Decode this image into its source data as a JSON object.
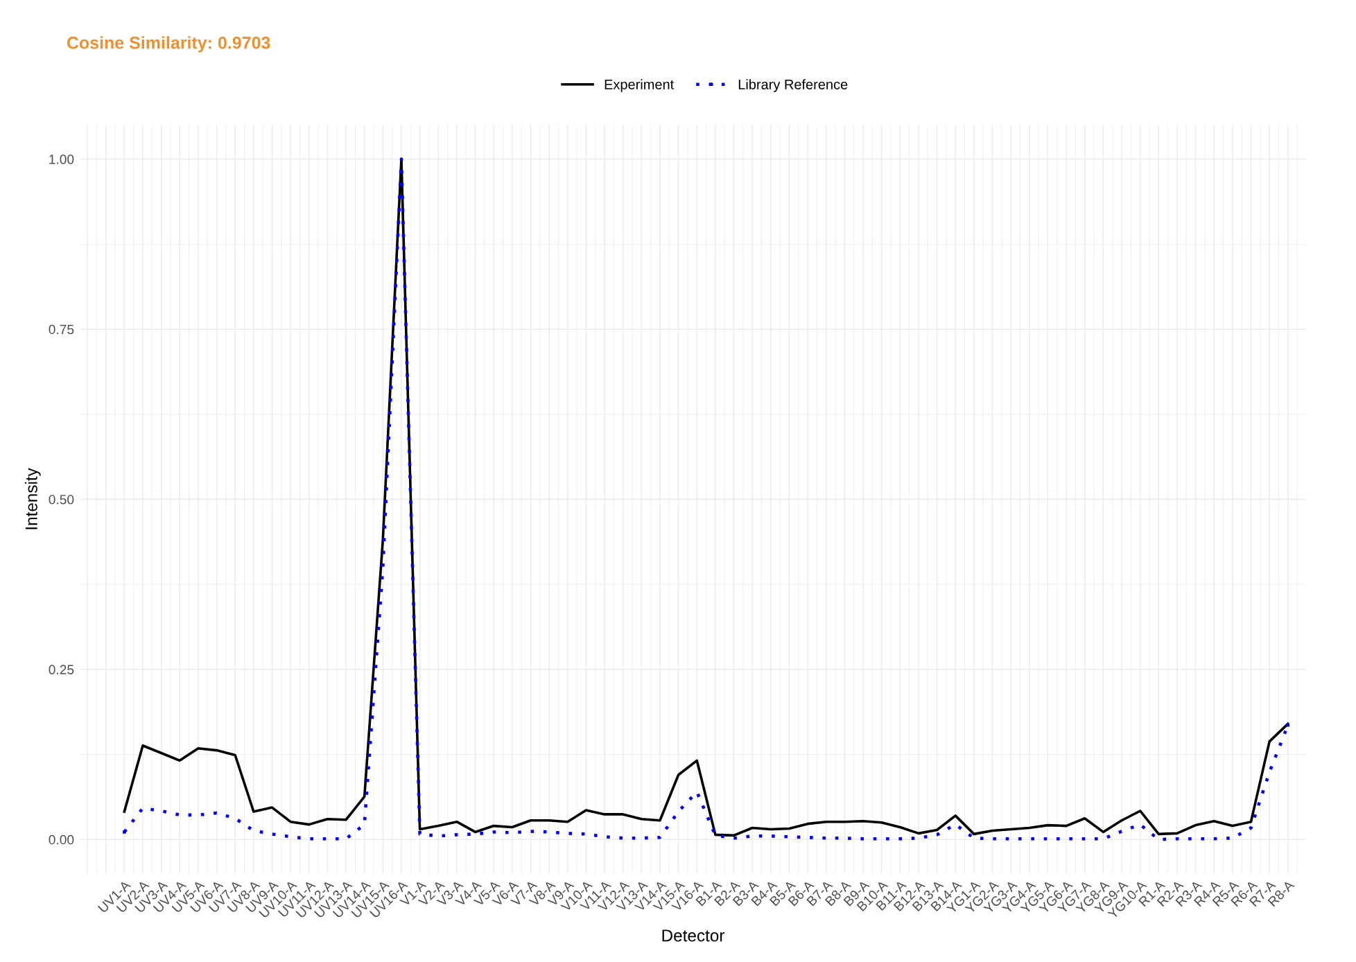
{
  "chart_data": {
    "type": "line",
    "subtitle": "Cosine Similarity: 0.9703",
    "xlabel": "Detector",
    "ylabel": "Intensity",
    "categories": [
      "UV1-A",
      "UV2-A",
      "UV3-A",
      "UV4-A",
      "UV5-A",
      "UV6-A",
      "UV7-A",
      "UV8-A",
      "UV9-A",
      "UV10-A",
      "UV11-A",
      "UV12-A",
      "UV13-A",
      "UV14-A",
      "UV15-A",
      "UV16-A",
      "V1-A",
      "V2-A",
      "V3-A",
      "V4-A",
      "V5-A",
      "V6-A",
      "V7-A",
      "V8-A",
      "V9-A",
      "V10-A",
      "V11-A",
      "V12-A",
      "V13-A",
      "V14-A",
      "V15-A",
      "V16-A",
      "B1-A",
      "B2-A",
      "B3-A",
      "B4-A",
      "B5-A",
      "B6-A",
      "B7-A",
      "B8-A",
      "B9-A",
      "B10-A",
      "B11-A",
      "B12-A",
      "B13-A",
      "B14-A",
      "YG1-A",
      "YG2-A",
      "YG3-A",
      "YG4-A",
      "YG5-A",
      "YG6-A",
      "YG7-A",
      "YG8-A",
      "YG9-A",
      "YG10-A",
      "R1-A",
      "R2-A",
      "R3-A",
      "R4-A",
      "R5-A",
      "R6-A",
      "R7-A",
      "R8-A"
    ],
    "series": [
      {
        "name": "Experiment",
        "color": "#000000",
        "line_style": "solid",
        "values": [
          0.041,
          0.138,
          0.127,
          0.116,
          0.134,
          0.131,
          0.124,
          0.041,
          0.047,
          0.026,
          0.022,
          0.03,
          0.029,
          0.063,
          0.441,
          1.0,
          0.015,
          0.02,
          0.026,
          0.011,
          0.02,
          0.018,
          0.028,
          0.028,
          0.026,
          0.043,
          0.037,
          0.037,
          0.03,
          0.028,
          0.095,
          0.116,
          0.007,
          0.006,
          0.017,
          0.015,
          0.016,
          0.023,
          0.026,
          0.026,
          0.027,
          0.025,
          0.018,
          0.009,
          0.014,
          0.035,
          0.008,
          0.013,
          0.015,
          0.017,
          0.021,
          0.02,
          0.031,
          0.011,
          0.028,
          0.042,
          0.008,
          0.009,
          0.021,
          0.027,
          0.02,
          0.026,
          0.144,
          0.17
        ]
      },
      {
        "name": "Library Reference",
        "color": "#0000ff",
        "line_style": "dotted",
        "values": [
          0.011,
          0.046,
          0.042,
          0.036,
          0.036,
          0.039,
          0.031,
          0.013,
          0.008,
          0.004,
          0.001,
          0.001,
          0.001,
          0.022,
          0.4,
          1.0,
          0.008,
          0.005,
          0.007,
          0.008,
          0.011,
          0.01,
          0.012,
          0.011,
          0.009,
          0.008,
          0.004,
          0.002,
          0.002,
          0.003,
          0.041,
          0.07,
          0.006,
          0.002,
          0.005,
          0.005,
          0.004,
          0.003,
          0.002,
          0.002,
          0.001,
          0.001,
          0.001,
          0.002,
          0.007,
          0.022,
          0.002,
          0.001,
          0.001,
          0.001,
          0.001,
          0.001,
          0.001,
          0.001,
          0.012,
          0.022,
          0.0,
          0.001,
          0.001,
          0.001,
          0.002,
          0.017,
          0.099,
          0.168
        ]
      }
    ],
    "ylim": [
      -0.05,
      1.05
    ],
    "yticks": [
      {
        "value": 0,
        "label": "0.00"
      },
      {
        "value": 0.25,
        "label": "0.25"
      },
      {
        "value": 0.5,
        "label": "0.50"
      },
      {
        "value": 0.75,
        "label": "0.75"
      },
      {
        "value": 1,
        "label": "1.00"
      }
    ],
    "grid": true,
    "legend": "top"
  }
}
